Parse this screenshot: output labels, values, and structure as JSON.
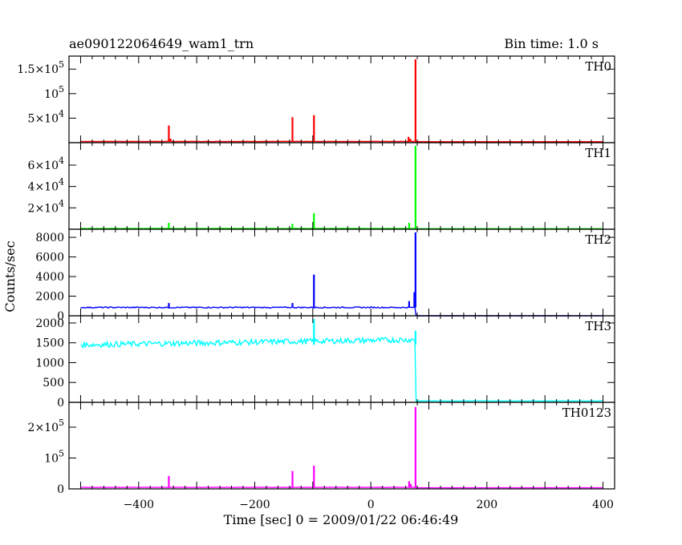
{
  "header": {
    "title": "ae090122064649_wam1_trn",
    "bin_time": "Bin time: 1.0 s"
  },
  "chart_data": {
    "type": "line",
    "title": "ae090122064649_wam1_trn",
    "xlabel": "Time [sec] 0 = 2009/01/22 06:46:49",
    "ylabel": "Counts/sec",
    "xlim": [
      -520,
      420
    ],
    "x_ticks": [
      -400,
      -200,
      0,
      200,
      400
    ],
    "x_tick_labels": [
      "−400",
      "−200",
      "0",
      "200",
      "400"
    ],
    "grid": false,
    "panels": [
      {
        "name": "TH0",
        "color": "#ff0000",
        "ylim": [
          0,
          170000
        ],
        "y_ticks": [
          50000,
          100000,
          150000
        ],
        "y_tick_labels": [
          {
            "mant": "5×10",
            "exp": "4"
          },
          {
            "mant": "10",
            "exp": "5"
          },
          {
            "mant": "1.5×10",
            "exp": "5"
          }
        ],
        "baseline": 2500,
        "noise": 400,
        "drop": 2000,
        "spikes": [
          [
            -348,
            35000
          ],
          [
            -345,
            8000
          ],
          [
            -200,
            5000
          ],
          [
            -135,
            52000
          ],
          [
            -98,
            56000
          ],
          [
            65,
            12000
          ],
          [
            68,
            8000
          ],
          [
            77,
            170000
          ]
        ]
      },
      {
        "name": "TH1",
        "color": "#00ff00",
        "ylim": [
          0,
          78000
        ],
        "y_ticks": [
          20000,
          40000,
          60000
        ],
        "y_tick_labels": [
          {
            "mant": "2×10",
            "exp": "4"
          },
          {
            "mant": "4×10",
            "exp": "4"
          },
          {
            "mant": "6×10",
            "exp": "4"
          }
        ],
        "baseline": 700,
        "noise": 150,
        "drop": 500,
        "spikes": [
          [
            -348,
            6000
          ],
          [
            -135,
            5000
          ],
          [
            -98,
            15000
          ],
          [
            66,
            6000
          ],
          [
            77,
            78000
          ]
        ]
      },
      {
        "name": "TH2",
        "color": "#0000ff",
        "ylim": [
          0,
          8500
        ],
        "y_ticks": [
          0,
          2000,
          4000,
          6000,
          8000
        ],
        "y_tick_labels": [
          {
            "mant": "0",
            "exp": ""
          },
          {
            "mant": "2000",
            "exp": ""
          },
          {
            "mant": "4000",
            "exp": ""
          },
          {
            "mant": "6000",
            "exp": ""
          },
          {
            "mant": "8000",
            "exp": ""
          }
        ],
        "baseline": 850,
        "noise": 60,
        "drop": 0,
        "spikes": [
          [
            -348,
            1300
          ],
          [
            -135,
            1300
          ],
          [
            -98,
            4200
          ],
          [
            66,
            1500
          ],
          [
            75,
            2400
          ],
          [
            77,
            8500
          ]
        ]
      },
      {
        "name": "TH3",
        "color": "#00ffff",
        "ylim": [
          0,
          2100
        ],
        "y_ticks": [
          0,
          500,
          1000,
          1500,
          2000
        ],
        "y_tick_labels": [
          {
            "mant": "0",
            "exp": ""
          },
          {
            "mant": "500",
            "exp": ""
          },
          {
            "mant": "1000",
            "exp": ""
          },
          {
            "mant": "1500",
            "exp": ""
          },
          {
            "mant": "2000",
            "exp": ""
          }
        ],
        "baseline": 1450,
        "baseline_end": 1580,
        "noise": 70,
        "drop": 30,
        "spikes": [
          [
            -98,
            2100
          ],
          [
            77,
            1800
          ]
        ]
      },
      {
        "name": "TH0123",
        "color": "#ff00ff",
        "ylim": [
          0,
          270000
        ],
        "y_ticks": [
          0,
          100000,
          200000
        ],
        "y_tick_labels": [
          {
            "mant": "0",
            "exp": ""
          },
          {
            "mant": "10",
            "exp": "5"
          },
          {
            "mant": "2×10",
            "exp": "5"
          }
        ],
        "baseline": 5000,
        "noise": 700,
        "drop": 3500,
        "spikes": [
          [
            -348,
            42000
          ],
          [
            -200,
            8000
          ],
          [
            -135,
            58000
          ],
          [
            -98,
            75000
          ],
          [
            66,
            25000
          ],
          [
            69,
            16000
          ],
          [
            77,
            265000
          ]
        ]
      }
    ],
    "step_time": 78,
    "x_start": -500,
    "x_end": 400
  }
}
